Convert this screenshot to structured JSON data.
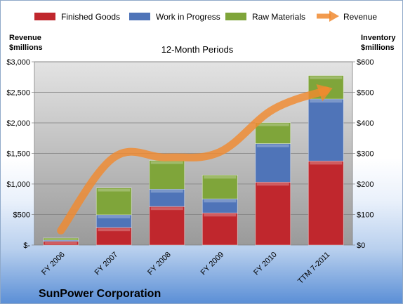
{
  "chart_data": {
    "type": "bar",
    "subtitle": "12-Month Periods",
    "company": "SunPower Corporation",
    "ylabel_left": [
      "Revenue",
      "$millions"
    ],
    "ylabel_right": [
      "Inventory",
      "$millions"
    ],
    "categories": [
      "FY 2006",
      "FY 2007",
      "FY 2008",
      "FY 2009",
      "FY 2010",
      "TTM 7-2011"
    ],
    "ylim_left": [
      0,
      3000
    ],
    "ylim_right": [
      0,
      600
    ],
    "left_ticks": [
      "$-",
      "$500",
      "$1,000",
      "$1,500",
      "$2,000",
      "$2,500",
      "$3,000"
    ],
    "right_ticks": [
      "$0",
      "$100",
      "$200",
      "$300",
      "$400",
      "$500",
      "$600"
    ],
    "stacked": true,
    "series": [
      {
        "name": "Finished Goods",
        "color": "#c0272d",
        "values": [
          12,
          57,
          126,
          105,
          206,
          275
        ]
      },
      {
        "name": "Work in Progress",
        "color": "#4f74b8",
        "values": [
          4,
          42,
          57,
          46,
          126,
          203
        ]
      },
      {
        "name": "Raw Materials",
        "color": "#7fa53a",
        "values": [
          7,
          88,
          94,
          78,
          69,
          77
        ]
      }
    ],
    "line_series": {
      "name": "Revenue",
      "axis": "left",
      "color": "#f08a30",
      "values": [
        237,
        1435,
        1435,
        1524,
        2219,
        2530
      ]
    },
    "grid": true,
    "legend_position": "top"
  }
}
